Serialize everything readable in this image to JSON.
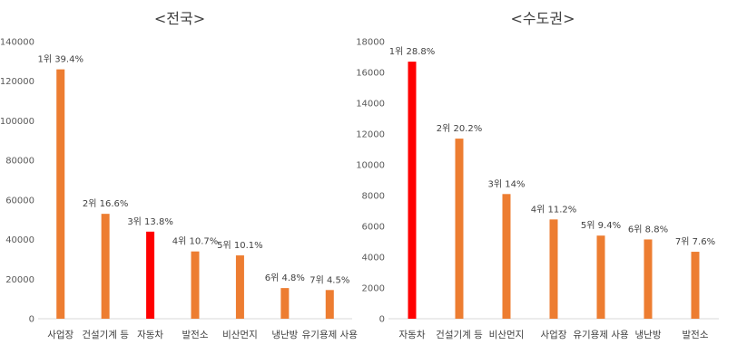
{
  "colors": {
    "bar": "#ed7d31",
    "highlight": "#ff0000",
    "axis": "#d9d9d9",
    "text": "#404040"
  },
  "chart_data": [
    {
      "type": "bar",
      "title": "<전국>",
      "xlabel": "",
      "ylabel": "",
      "ylim": [
        0,
        140000
      ],
      "yticks": [
        "0",
        "20000",
        "40000",
        "60000",
        "80000",
        "100000",
        "120000",
        "140000"
      ],
      "grid": false,
      "categories": [
        "사업장",
        "건설기계 등",
        "자동차",
        "발전소",
        "비산먼지",
        "냉난방",
        "유기용제 사용"
      ],
      "values": [
        126000,
        53000,
        44000,
        34000,
        32000,
        15500,
        14500
      ],
      "data_labels": [
        "1위 39.4%",
        "2위 16.6%",
        "3위 13.8%",
        "4위 10.7%",
        "5위 10.1%",
        "6위 4.8%",
        "7위 4.5%"
      ],
      "highlight_category": "자동차"
    },
    {
      "type": "bar",
      "title": "<수도권>",
      "xlabel": "",
      "ylabel": "",
      "ylim": [
        0,
        18000
      ],
      "yticks": [
        "0",
        "2000",
        "4000",
        "6000",
        "8000",
        "10000",
        "12000",
        "14000",
        "16000",
        "18000"
      ],
      "grid": false,
      "categories": [
        "자동차",
        "건설기계 등",
        "비산먼지",
        "사업장",
        "유기용제 사용",
        "냉난방",
        "발전소"
      ],
      "values": [
        16700,
        11700,
        8100,
        6450,
        5400,
        5150,
        4350
      ],
      "data_labels": [
        "1위 28.8%",
        "2위 20.2%",
        "3위 14%",
        "4위 11.2%",
        "5위 9.4%",
        "6위 8.8%",
        "7위 7.6%"
      ],
      "highlight_category": "자동차"
    }
  ]
}
